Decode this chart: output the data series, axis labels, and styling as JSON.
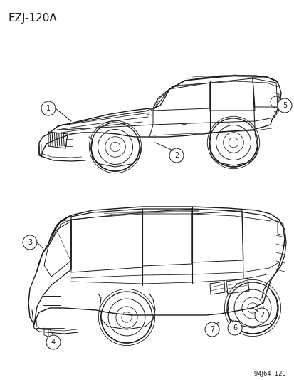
{
  "title": "EZJ-120A",
  "footer": "94J64  120",
  "background_color": "#ffffff",
  "line_color": "#1a1a1a",
  "fig_width": 4.14,
  "fig_height": 5.33,
  "dpi": 100
}
